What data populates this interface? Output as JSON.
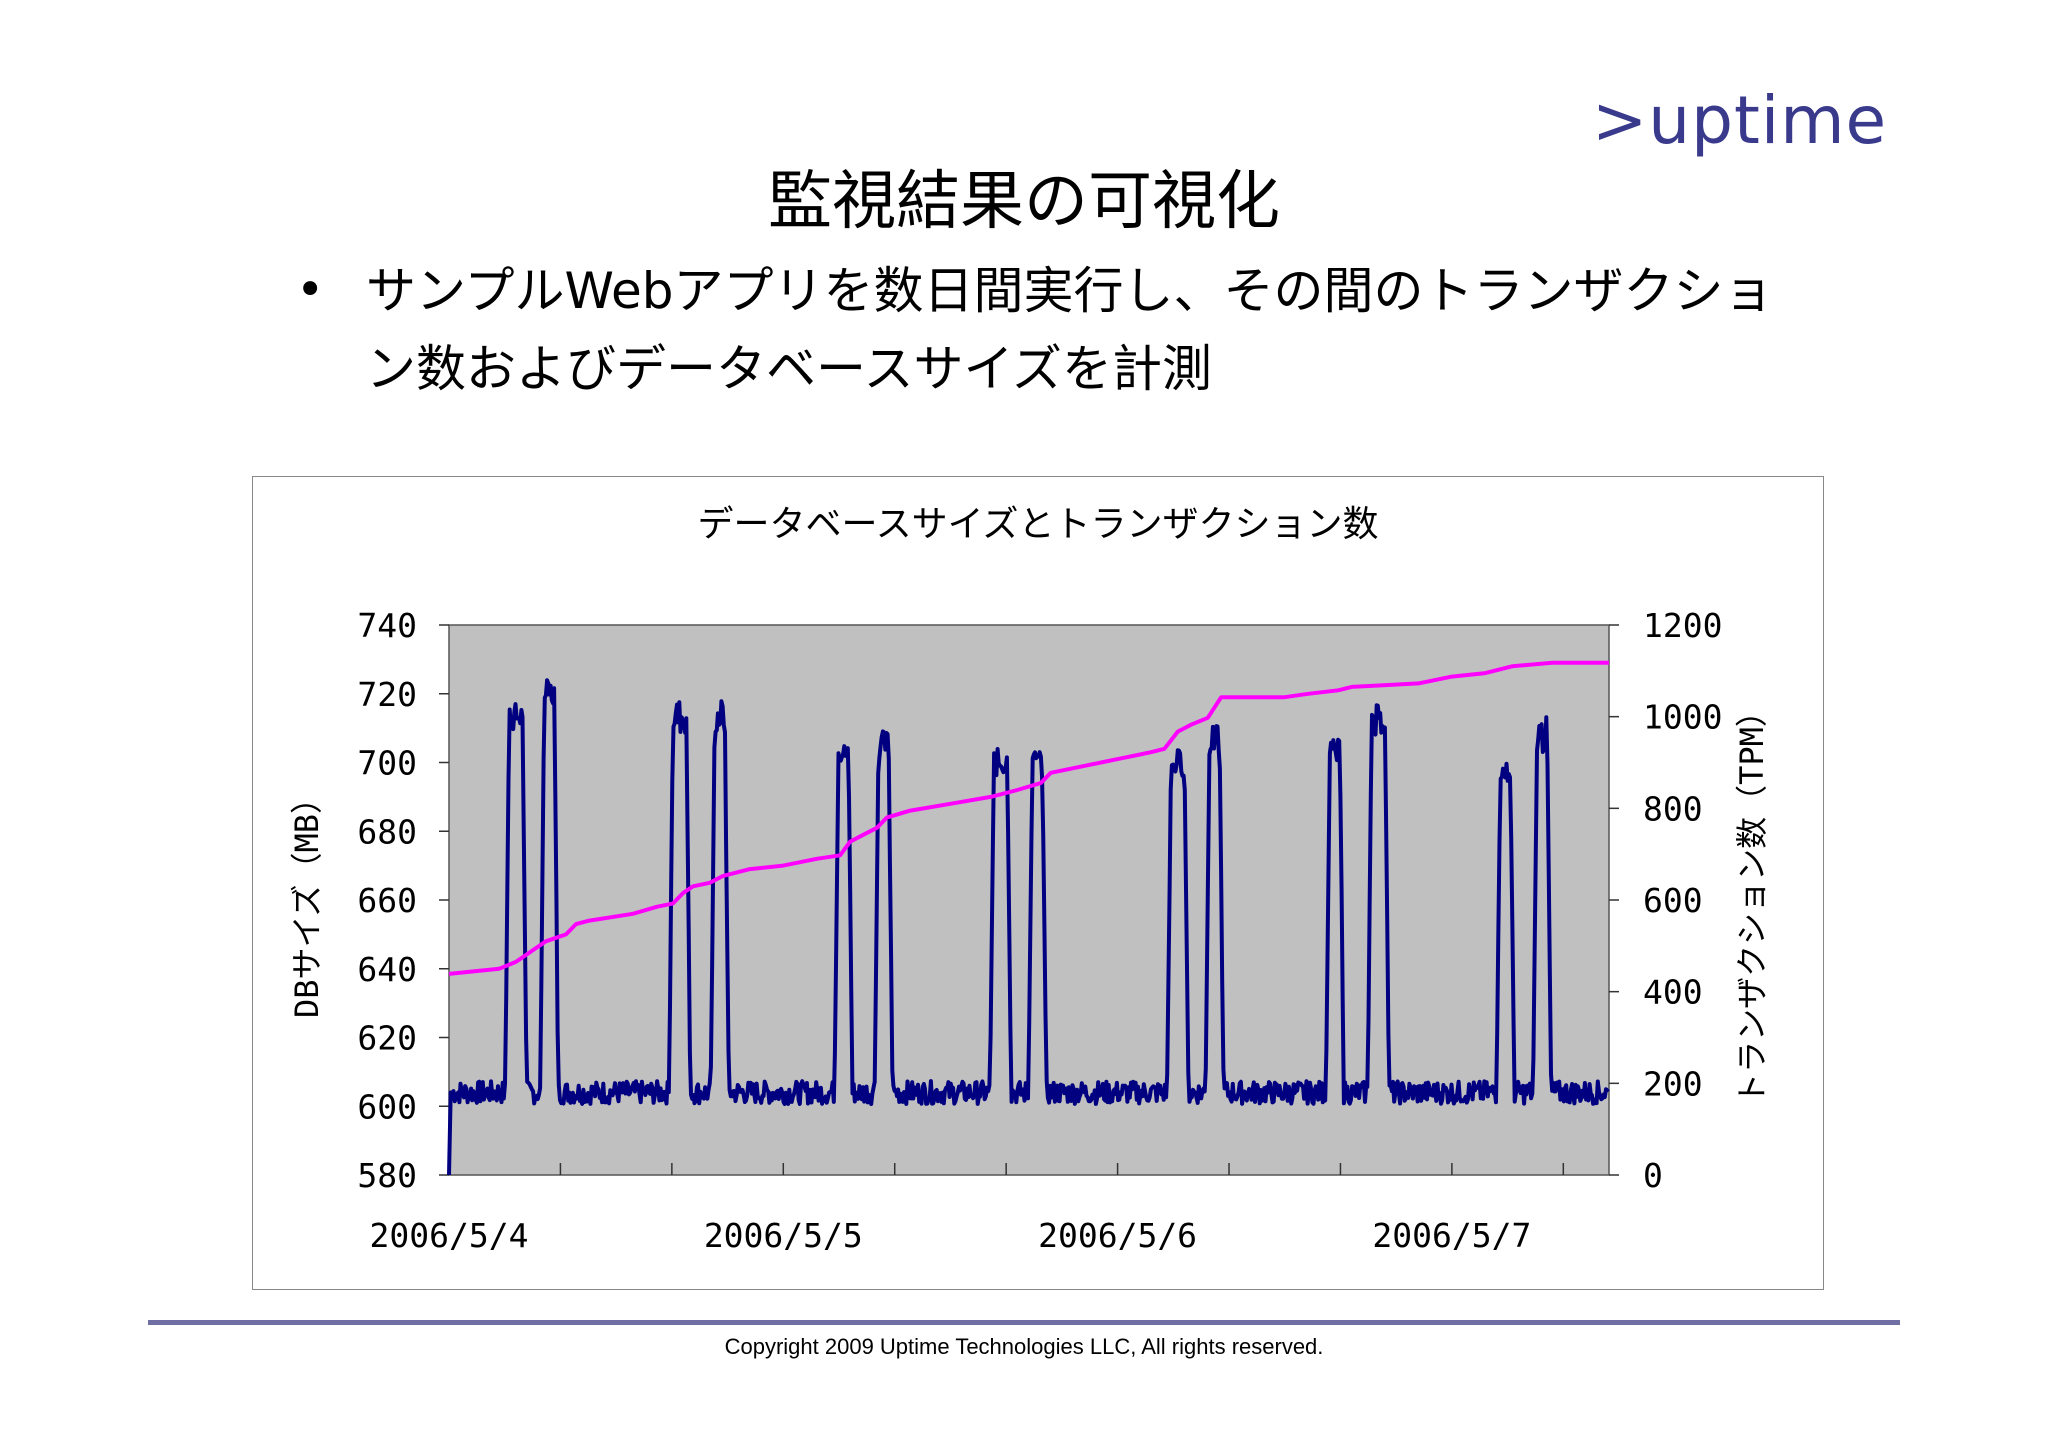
{
  "header": {
    "logo_text": ">uptime",
    "title": "監視結果の可視化"
  },
  "bullet": {
    "marker": "•",
    "text": "サンプルWebアプリを数日間実行し、その間のトランザクション数およびデータベースサイズを計測"
  },
  "footer": {
    "copyright": "Copyright 2009 Uptime Technologies LLC, All rights reserved."
  },
  "colors": {
    "plot_bg": "#c0c0c0",
    "db_size_line": "#ff00ff",
    "tpm_line": "#000080",
    "footer_rule": "#6f6fa3",
    "logo": "#3a3a8c"
  },
  "chart_data": {
    "type": "line",
    "title": "データベースサイズとトランザクション数",
    "ylabel": "DBサイズ（MB）",
    "y2label": "トランザクション数（TPM）",
    "ylim": [
      580,
      740
    ],
    "y2lim": [
      0,
      1200
    ],
    "yticks": [
      740,
      720,
      700,
      680,
      660,
      640,
      620,
      600,
      580
    ],
    "y2ticks": [
      1200,
      1000,
      800,
      600,
      400,
      200,
      0
    ],
    "xlim": [
      0,
      3.47
    ],
    "x_unit": "days from 2006/5/4",
    "x_tick_labels": [
      "2006/5/4",
      "2006/5/5",
      "2006/5/6",
      "2006/5/7"
    ],
    "x_tick_positions": [
      0,
      1,
      2,
      3
    ],
    "grid": false,
    "legend": "none",
    "series": [
      {
        "axis": "left",
        "points": [
          [
            0.0,
            638.5
          ],
          [
            0.15,
            640
          ],
          [
            0.2,
            642
          ],
          [
            0.26,
            646
          ],
          [
            0.29,
            648
          ],
          [
            0.32,
            649
          ],
          [
            0.35,
            650
          ],
          [
            0.38,
            653
          ],
          [
            0.42,
            654
          ],
          [
            0.55,
            656
          ],
          [
            0.62,
            658
          ],
          [
            0.67,
            659
          ],
          [
            0.7,
            662
          ],
          [
            0.73,
            664
          ],
          [
            0.78,
            665
          ],
          [
            0.82,
            667
          ],
          [
            0.9,
            669
          ],
          [
            1.0,
            670
          ],
          [
            1.1,
            672
          ],
          [
            1.17,
            673
          ],
          [
            1.2,
            677
          ],
          [
            1.24,
            679
          ],
          [
            1.28,
            681
          ],
          [
            1.31,
            684
          ],
          [
            1.38,
            686
          ],
          [
            1.5,
            688
          ],
          [
            1.62,
            690
          ],
          [
            1.7,
            692
          ],
          [
            1.77,
            694
          ],
          [
            1.8,
            697
          ],
          [
            1.9,
            699
          ],
          [
            2.0,
            701
          ],
          [
            2.1,
            703
          ],
          [
            2.14,
            704
          ],
          [
            2.18,
            709
          ],
          [
            2.22,
            711
          ],
          [
            2.27,
            713
          ],
          [
            2.31,
            719
          ],
          [
            2.5,
            719
          ],
          [
            2.57,
            720
          ],
          [
            2.66,
            721
          ],
          [
            2.7,
            722
          ],
          [
            2.9,
            723
          ],
          [
            3.0,
            725
          ],
          [
            3.1,
            726
          ],
          [
            3.18,
            728
          ],
          [
            3.3,
            729
          ],
          [
            3.47,
            729
          ]
        ]
      },
      {
        "axis": "right",
        "peaks": [
          {
            "day": 0.2,
            "width": 0.04,
            "level": 1000,
            "variation": 30
          },
          {
            "day": 0.3,
            "width": 0.03,
            "level": 1050,
            "variation": 30
          },
          {
            "day": 0.69,
            "width": 0.04,
            "level": 1000,
            "variation": 40
          },
          {
            "day": 0.81,
            "width": 0.03,
            "level": 1000,
            "variation": 40
          },
          {
            "day": 1.18,
            "width": 0.03,
            "level": 920,
            "variation": 20
          },
          {
            "day": 1.3,
            "width": 0.03,
            "level": 940,
            "variation": 30
          },
          {
            "day": 1.65,
            "width": 0.04,
            "level": 900,
            "variation": 30
          },
          {
            "day": 1.76,
            "width": 0.03,
            "level": 900,
            "variation": 30
          },
          {
            "day": 2.18,
            "width": 0.04,
            "level": 900,
            "variation": 30
          },
          {
            "day": 2.29,
            "width": 0.03,
            "level": 950,
            "variation": 30
          },
          {
            "day": 2.65,
            "width": 0.03,
            "level": 920,
            "variation": 30
          },
          {
            "day": 2.78,
            "width": 0.04,
            "level": 1000,
            "variation": 40
          },
          {
            "day": 3.16,
            "width": 0.03,
            "level": 880,
            "variation": 20
          },
          {
            "day": 3.27,
            "width": 0.03,
            "level": 960,
            "variation": 40
          }
        ],
        "baseline": 180,
        "baseline_variation": 25,
        "start": 0
      }
    ]
  }
}
